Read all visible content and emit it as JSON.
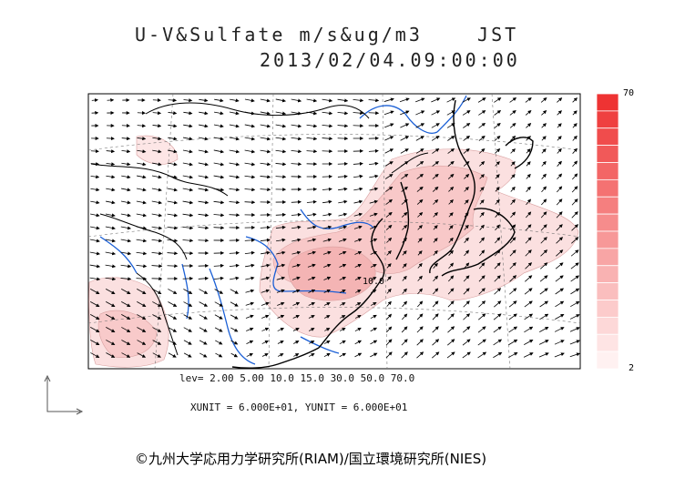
{
  "title": {
    "line1": "U-V&Sulfate m/s&ug/m3    JST",
    "line2": "2013/02/04.09:00:00"
  },
  "colorbar": {
    "max_label": "70",
    "min_label": "2"
  },
  "contour_label": "10.0",
  "levels_text": "lev= 2.00 5.00 10.0 15.0 30.0 50.0 70.0",
  "units_text": "XUNIT = 6.000E+01, YUNIT = 6.000E+01",
  "copyright": "©九州大学応用力学研究所(RIAM)/国立環境研究所(NIES)",
  "colors": {
    "coastline": "#000000",
    "rivers": "#1a5fd6",
    "sulfate_low": "#fbe0e0",
    "sulfate_mid": "#f5b3b3",
    "colorbar_top": "#ee3333"
  },
  "icons": [
    "axis-reference-icon",
    "wind-arrow-icon"
  ]
}
